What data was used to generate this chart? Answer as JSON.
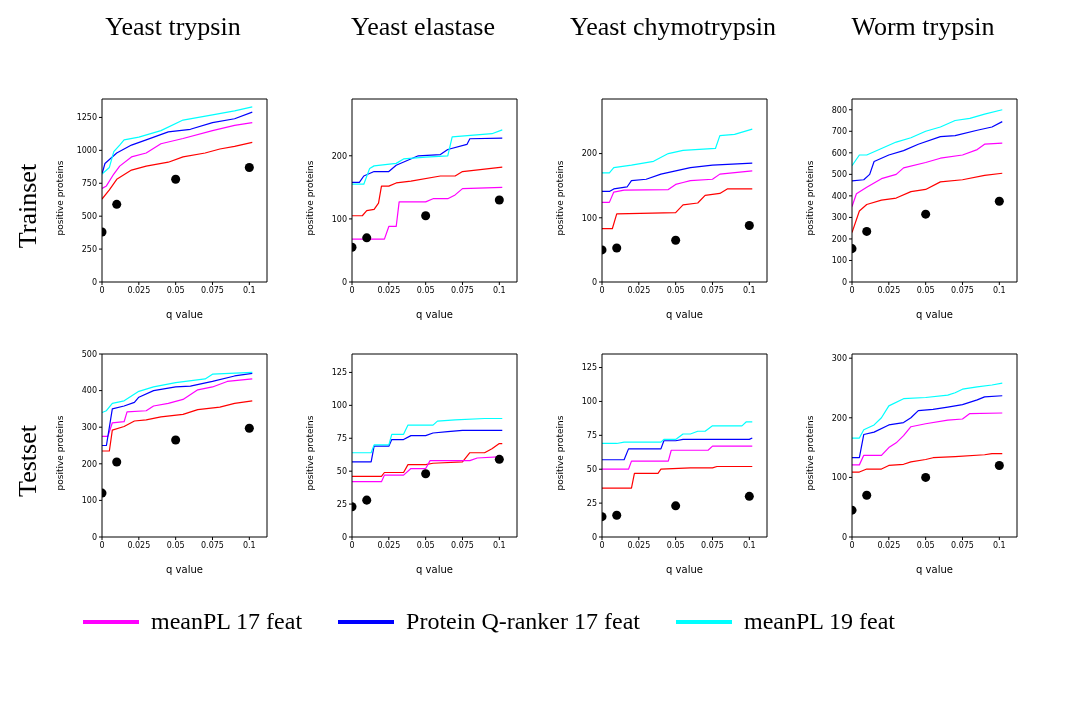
{
  "chart_data": [
    {
      "type": "line",
      "title": "Yeast trypsin",
      "annotations": [
        "Trainset"
      ],
      "xlabel": "q value",
      "ylabel": "positive proteins",
      "xlim": [
        0,
        0.112
      ],
      "xticks": [
        0,
        0.025,
        0.05,
        0.075,
        0.1
      ],
      "ylim": [
        0,
        1390
      ],
      "yticks": [
        0,
        250,
        500,
        750,
        1000,
        1250
      ],
      "legend": "bottom",
      "series": [
        {
          "color": "#ff0000",
          "x": [
            0,
            0.005,
            0.01,
            0.02,
            0.03,
            0.045,
            0.055,
            0.07,
            0.08,
            0.09,
            0.102
          ],
          "values": [
            630,
            700,
            780,
            850,
            880,
            910,
            950,
            980,
            1010,
            1030,
            1060
          ]
        },
        {
          "name": "meanPL 17 feat",
          "color": "#ff00ff",
          "x": [
            0,
            0.003,
            0.008,
            0.012,
            0.02,
            0.03,
            0.04,
            0.055,
            0.075,
            0.09,
            0.102
          ],
          "values": [
            710,
            730,
            820,
            880,
            950,
            980,
            1050,
            1090,
            1150,
            1190,
            1210
          ]
        },
        {
          "name": "Protein Q-ranker 17 feat",
          "color": "#0000ff",
          "x": [
            0,
            0.002,
            0.01,
            0.02,
            0.03,
            0.045,
            0.06,
            0.075,
            0.09,
            0.102
          ],
          "values": [
            820,
            900,
            980,
            1040,
            1080,
            1140,
            1160,
            1210,
            1240,
            1290
          ]
        },
        {
          "name": "meanPL 19 feat",
          "color": "#00ffff",
          "x": [
            0,
            0.005,
            0.008,
            0.012,
            0.015,
            0.025,
            0.04,
            0.055,
            0.075,
            0.09,
            0.102
          ],
          "values": [
            820,
            870,
            990,
            1040,
            1080,
            1100,
            1150,
            1230,
            1270,
            1300,
            1330
          ]
        },
        {
          "type": "scatter",
          "color": "#000000",
          "x": [
            0,
            0.01,
            0.05,
            0.1
          ],
          "values": [
            380,
            590,
            780,
            870
          ]
        }
      ]
    },
    {
      "type": "line",
      "title": "Yeast elastase",
      "xlabel": "q value",
      "ylabel": "positive proteins",
      "xlim": [
        0,
        0.112
      ],
      "xticks": [
        0,
        0.025,
        0.05,
        0.075,
        0.1
      ],
      "ylim": [
        0,
        290
      ],
      "yticks": [
        0,
        100,
        200
      ],
      "series": [
        {
          "color": "#ff0000",
          "x": [
            0,
            0.007,
            0.01,
            0.015,
            0.018,
            0.02,
            0.025,
            0.03,
            0.04,
            0.06,
            0.07,
            0.075,
            0.102
          ],
          "values": [
            105,
            105,
            113,
            115,
            125,
            152,
            152,
            157,
            160,
            168,
            168,
            175,
            182
          ]
        },
        {
          "color": "#ff00ff",
          "x": [
            0,
            0.022,
            0.025,
            0.03,
            0.032,
            0.05,
            0.055,
            0.065,
            0.07,
            0.075,
            0.102
          ],
          "values": [
            68,
            68,
            88,
            88,
            127,
            127,
            132,
            132,
            138,
            148,
            150
          ]
        },
        {
          "color": "#0000ff",
          "x": [
            0,
            0.005,
            0.008,
            0.015,
            0.025,
            0.03,
            0.045,
            0.06,
            0.065,
            0.078,
            0.08,
            0.102
          ],
          "values": [
            158,
            158,
            168,
            175,
            175,
            185,
            200,
            202,
            210,
            218,
            227,
            228
          ]
        },
        {
          "color": "#00ffff",
          "x": [
            0,
            0.008,
            0.012,
            0.015,
            0.03,
            0.035,
            0.05,
            0.065,
            0.068,
            0.095,
            0.102
          ],
          "values": [
            155,
            155,
            180,
            184,
            188,
            195,
            198,
            200,
            230,
            235,
            241
          ]
        },
        {
          "type": "scatter",
          "color": "#000000",
          "x": [
            0,
            0.01,
            0.05,
            0.1
          ],
          "values": [
            55,
            70,
            105,
            130
          ]
        }
      ]
    },
    {
      "type": "line",
      "title": "Yeast chymotrypsin",
      "xlabel": "q value",
      "ylabel": "positive proteins",
      "xlim": [
        0,
        0.112
      ],
      "xticks": [
        0,
        0.025,
        0.05,
        0.075,
        0.1
      ],
      "ylim": [
        0,
        285
      ],
      "yticks": [
        0,
        100,
        200
      ],
      "series": [
        {
          "color": "#ff0000",
          "x": [
            0,
            0.007,
            0.01,
            0.05,
            0.055,
            0.065,
            0.07,
            0.08,
            0.085,
            0.102
          ],
          "values": [
            83,
            83,
            106,
            108,
            120,
            123,
            135,
            138,
            145,
            145
          ]
        },
        {
          "color": "#ff00ff",
          "x": [
            0,
            0.005,
            0.008,
            0.015,
            0.045,
            0.05,
            0.055,
            0.06,
            0.075,
            0.08,
            0.102
          ],
          "values": [
            124,
            124,
            140,
            143,
            144,
            152,
            155,
            158,
            160,
            168,
            173
          ]
        },
        {
          "color": "#0000ff",
          "x": [
            0,
            0.005,
            0.008,
            0.017,
            0.02,
            0.03,
            0.04,
            0.05,
            0.06,
            0.075,
            0.102
          ],
          "values": [
            141,
            141,
            145,
            148,
            158,
            160,
            168,
            173,
            178,
            182,
            185
          ]
        },
        {
          "color": "#00ffff",
          "x": [
            0,
            0.005,
            0.008,
            0.02,
            0.035,
            0.045,
            0.055,
            0.077,
            0.08,
            0.09,
            0.102
          ],
          "values": [
            170,
            170,
            178,
            182,
            188,
            200,
            205,
            208,
            228,
            230,
            238
          ]
        },
        {
          "type": "scatter",
          "color": "#000000",
          "x": [
            0,
            0.01,
            0.05,
            0.1
          ],
          "values": [
            50,
            53,
            65,
            88
          ]
        }
      ]
    },
    {
      "type": "line",
      "title": "Worm trypsin",
      "xlabel": "q value",
      "ylabel": "positive proteins",
      "xlim": [
        0,
        0.112
      ],
      "xticks": [
        0,
        0.025,
        0.05,
        0.075,
        0.1
      ],
      "ylim": [
        0,
        850
      ],
      "yticks": [
        0,
        100,
        200,
        300,
        400,
        500,
        600,
        700,
        800
      ],
      "series": [
        {
          "color": "#ff0000",
          "x": [
            0,
            0.005,
            0.01,
            0.02,
            0.03,
            0.04,
            0.05,
            0.06,
            0.075,
            0.09,
            0.102
          ],
          "values": [
            230,
            330,
            360,
            380,
            390,
            420,
            430,
            465,
            475,
            495,
            505
          ]
        },
        {
          "color": "#ff00ff",
          "x": [
            0,
            0.003,
            0.01,
            0.02,
            0.03,
            0.035,
            0.05,
            0.06,
            0.075,
            0.085,
            0.09,
            0.102
          ],
          "values": [
            350,
            410,
            440,
            480,
            500,
            530,
            555,
            575,
            590,
            615,
            640,
            645
          ]
        },
        {
          "color": "#0000ff",
          "x": [
            0,
            0.008,
            0.012,
            0.015,
            0.025,
            0.035,
            0.045,
            0.06,
            0.07,
            0.085,
            0.095,
            0.102
          ],
          "values": [
            470,
            475,
            500,
            560,
            590,
            610,
            640,
            675,
            680,
            705,
            720,
            745
          ]
        },
        {
          "color": "#00ffff",
          "x": [
            0,
            0.005,
            0.01,
            0.02,
            0.03,
            0.04,
            0.05,
            0.06,
            0.07,
            0.08,
            0.09,
            0.102
          ],
          "values": [
            540,
            590,
            590,
            620,
            650,
            670,
            700,
            720,
            750,
            760,
            780,
            800
          ]
        },
        {
          "type": "scatter",
          "color": "#000000",
          "x": [
            0,
            0.01,
            0.05,
            0.1
          ],
          "values": [
            155,
            235,
            315,
            375
          ]
        }
      ]
    },
    {
      "type": "line",
      "annotations": [
        "Testset"
      ],
      "xlabel": "q value",
      "ylabel": "positive proteins",
      "xlim": [
        0,
        0.112
      ],
      "xticks": [
        0,
        0.025,
        0.05,
        0.075,
        0.1
      ],
      "ylim": [
        0,
        500
      ],
      "yticks": [
        0,
        100,
        200,
        300,
        400,
        500
      ],
      "series": [
        {
          "color": "#ff0000",
          "x": [
            0,
            0.005,
            0.007,
            0.015,
            0.022,
            0.03,
            0.04,
            0.055,
            0.065,
            0.08,
            0.09,
            0.102
          ],
          "values": [
            235,
            235,
            292,
            302,
            317,
            320,
            328,
            335,
            348,
            355,
            365,
            372
          ]
        },
        {
          "color": "#ff00ff",
          "x": [
            0,
            0.004,
            0.007,
            0.015,
            0.017,
            0.03,
            0.035,
            0.045,
            0.055,
            0.065,
            0.075,
            0.085,
            0.102
          ],
          "values": [
            275,
            275,
            312,
            315,
            342,
            345,
            358,
            365,
            376,
            402,
            410,
            425,
            432
          ]
        },
        {
          "color": "#0000ff",
          "x": [
            0,
            0.003,
            0.007,
            0.015,
            0.022,
            0.025,
            0.035,
            0.05,
            0.06,
            0.075,
            0.09,
            0.102
          ],
          "values": [
            250,
            250,
            350,
            358,
            368,
            382,
            400,
            410,
            412,
            425,
            440,
            447
          ]
        },
        {
          "color": "#00ffff",
          "x": [
            0,
            0.003,
            0.007,
            0.015,
            0.025,
            0.035,
            0.05,
            0.07,
            0.075,
            0.102
          ],
          "values": [
            340,
            345,
            365,
            372,
            398,
            410,
            422,
            432,
            445,
            450
          ]
        },
        {
          "type": "scatter",
          "color": "#000000",
          "x": [
            0,
            0.01,
            0.05,
            0.1
          ],
          "values": [
            120,
            205,
            265,
            297
          ]
        }
      ]
    },
    {
      "type": "line",
      "xlabel": "q value",
      "ylabel": "positive proteins",
      "xlim": [
        0,
        0.112
      ],
      "xticks": [
        0,
        0.025,
        0.05,
        0.075,
        0.1
      ],
      "ylim": [
        0,
        139
      ],
      "yticks": [
        0,
        25,
        50,
        75,
        100,
        125
      ],
      "series": [
        {
          "color": "#ff0000",
          "x": [
            0,
            0.02,
            0.022,
            0.035,
            0.038,
            0.05,
            0.055,
            0.075,
            0.08,
            0.09,
            0.095,
            0.1,
            0.102
          ],
          "values": [
            46,
            46,
            49,
            49,
            55,
            55,
            56,
            57,
            64,
            64,
            67,
            71,
            71
          ]
        },
        {
          "color": "#ff00ff",
          "x": [
            0,
            0.02,
            0.022,
            0.035,
            0.04,
            0.05,
            0.053,
            0.08,
            0.085,
            0.102
          ],
          "values": [
            42,
            42,
            47,
            47,
            52,
            52,
            58,
            58,
            60,
            61
          ]
        },
        {
          "color": "#0000ff",
          "x": [
            0,
            0.013,
            0.015,
            0.025,
            0.027,
            0.035,
            0.04,
            0.05,
            0.055,
            0.065,
            0.075,
            0.102
          ],
          "values": [
            57,
            57,
            69,
            69,
            74,
            74,
            77,
            77,
            79,
            80,
            81,
            81
          ]
        },
        {
          "color": "#00ffff",
          "x": [
            0,
            0.013,
            0.015,
            0.025,
            0.027,
            0.035,
            0.038,
            0.055,
            0.058,
            0.07,
            0.09,
            0.102
          ],
          "values": [
            64,
            64,
            70,
            70,
            78,
            78,
            85,
            85,
            88,
            89,
            90,
            90
          ]
        },
        {
          "type": "scatter",
          "color": "#000000",
          "x": [
            0,
            0.01,
            0.05,
            0.1
          ],
          "values": [
            23,
            28,
            48,
            59
          ]
        }
      ]
    },
    {
      "type": "line",
      "xlabel": "q value",
      "ylabel": "positive proteins",
      "xlim": [
        0,
        0.112
      ],
      "xticks": [
        0,
        0.025,
        0.05,
        0.075,
        0.1
      ],
      "ylim": [
        0,
        135
      ],
      "yticks": [
        0,
        25,
        50,
        75,
        100,
        125
      ],
      "series": [
        {
          "color": "#ff0000",
          "x": [
            0,
            0.02,
            0.022,
            0.038,
            0.04,
            0.06,
            0.075,
            0.078,
            0.102
          ],
          "values": [
            36,
            36,
            47,
            47,
            50,
            51,
            51,
            52,
            52
          ]
        },
        {
          "color": "#ff00ff",
          "x": [
            0,
            0.018,
            0.02,
            0.045,
            0.047,
            0.072,
            0.075,
            0.102
          ],
          "values": [
            50,
            50,
            56,
            56,
            64,
            64,
            67,
            67
          ]
        },
        {
          "color": "#0000ff",
          "x": [
            0,
            0.015,
            0.018,
            0.04,
            0.042,
            0.05,
            0.055,
            0.1,
            0.102
          ],
          "values": [
            57,
            57,
            65,
            65,
            71,
            71,
            72,
            72,
            73
          ]
        },
        {
          "color": "#00ffff",
          "x": [
            0,
            0.01,
            0.015,
            0.04,
            0.042,
            0.05,
            0.055,
            0.06,
            0.065,
            0.07,
            0.075,
            0.095,
            0.098,
            0.102
          ],
          "values": [
            69,
            69,
            70,
            70,
            72,
            72,
            76,
            76,
            78,
            78,
            82,
            82,
            85,
            85
          ]
        },
        {
          "type": "scatter",
          "color": "#000000",
          "x": [
            0,
            0.01,
            0.05,
            0.1
          ],
          "values": [
            15,
            16,
            23,
            30
          ]
        }
      ]
    },
    {
      "type": "line",
      "xlabel": "q value",
      "ylabel": "positive proteins",
      "xlim": [
        0,
        0.112
      ],
      "xticks": [
        0,
        0.025,
        0.05,
        0.075,
        0.1
      ],
      "ylim": [
        0,
        307
      ],
      "yticks": [
        0,
        100,
        200,
        300
      ],
      "series": [
        {
          "color": "#ff0000",
          "x": [
            0,
            0.005,
            0.01,
            0.02,
            0.025,
            0.035,
            0.04,
            0.05,
            0.055,
            0.07,
            0.09,
            0.095,
            0.102
          ],
          "values": [
            109,
            109,
            114,
            114,
            120,
            122,
            126,
            130,
            133,
            135,
            138,
            140,
            140
          ]
        },
        {
          "color": "#ff00ff",
          "x": [
            0,
            0.005,
            0.008,
            0.02,
            0.025,
            0.03,
            0.035,
            0.04,
            0.05,
            0.065,
            0.075,
            0.08,
            0.102
          ],
          "values": [
            121,
            121,
            137,
            137,
            150,
            158,
            170,
            185,
            190,
            196,
            198,
            207,
            208
          ]
        },
        {
          "color": "#0000ff",
          "x": [
            0,
            0.005,
            0.008,
            0.015,
            0.025,
            0.035,
            0.04,
            0.045,
            0.055,
            0.065,
            0.075,
            0.085,
            0.09,
            0.102
          ],
          "values": [
            133,
            133,
            172,
            176,
            188,
            192,
            200,
            212,
            214,
            218,
            222,
            230,
            235,
            237
          ]
        },
        {
          "color": "#00ffff",
          "x": [
            0,
            0.005,
            0.008,
            0.015,
            0.02,
            0.025,
            0.035,
            0.05,
            0.065,
            0.07,
            0.075,
            0.085,
            0.095,
            0.102
          ],
          "values": [
            166,
            166,
            180,
            188,
            200,
            220,
            232,
            234,
            238,
            242,
            248,
            252,
            255,
            258
          ]
        },
        {
          "type": "scatter",
          "color": "#000000",
          "x": [
            0,
            0.01,
            0.05,
            0.1
          ],
          "values": [
            45,
            70,
            100,
            120
          ]
        }
      ]
    }
  ]
}
